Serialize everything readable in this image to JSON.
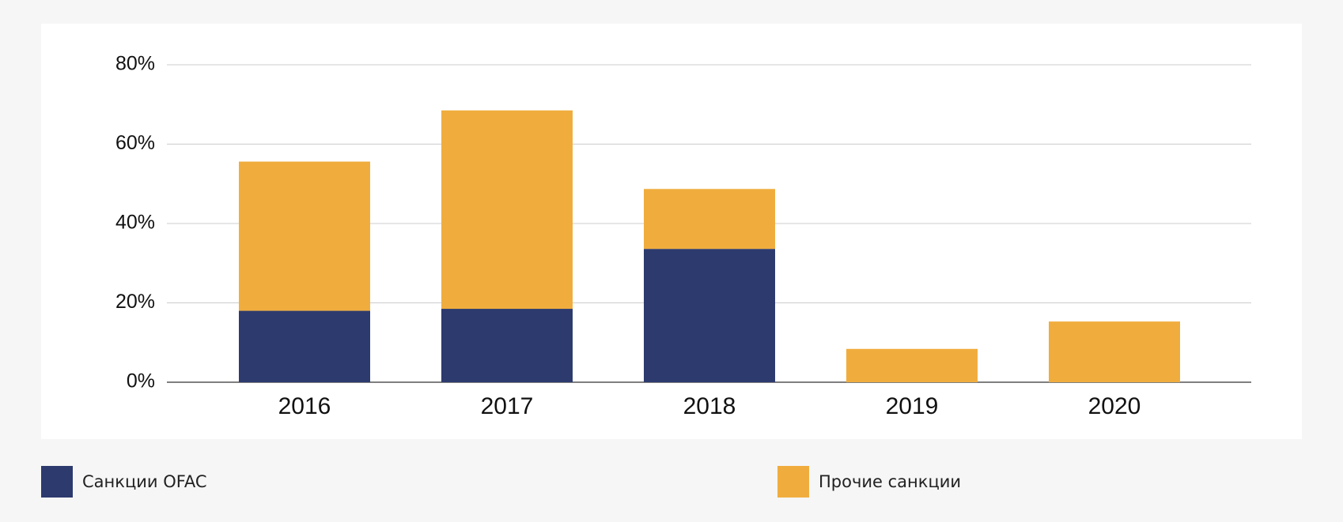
{
  "chart_data": {
    "type": "stacked_bar",
    "categories": [
      "2016",
      "2017",
      "2018",
      "2019",
      "2020"
    ],
    "series": [
      {
        "name": "Санкции OFAC",
        "color": "#2c3a6e",
        "values": [
          18,
          18.5,
          33.6,
          0,
          0
        ]
      },
      {
        "name": "Прочие санкции",
        "color": "#f0ad3e",
        "values": [
          37.6,
          50,
          15.1,
          8.4,
          15.3
        ]
      }
    ],
    "ylim": [
      0,
      80
    ],
    "yticks": [
      {
        "value": 0,
        "label": "0%"
      },
      {
        "value": 20,
        "label": "20%"
      },
      {
        "value": 40,
        "label": "40%"
      },
      {
        "value": 60,
        "label": "60%"
      },
      {
        "value": 80,
        "label": "80%"
      }
    ],
    "grid": true
  }
}
